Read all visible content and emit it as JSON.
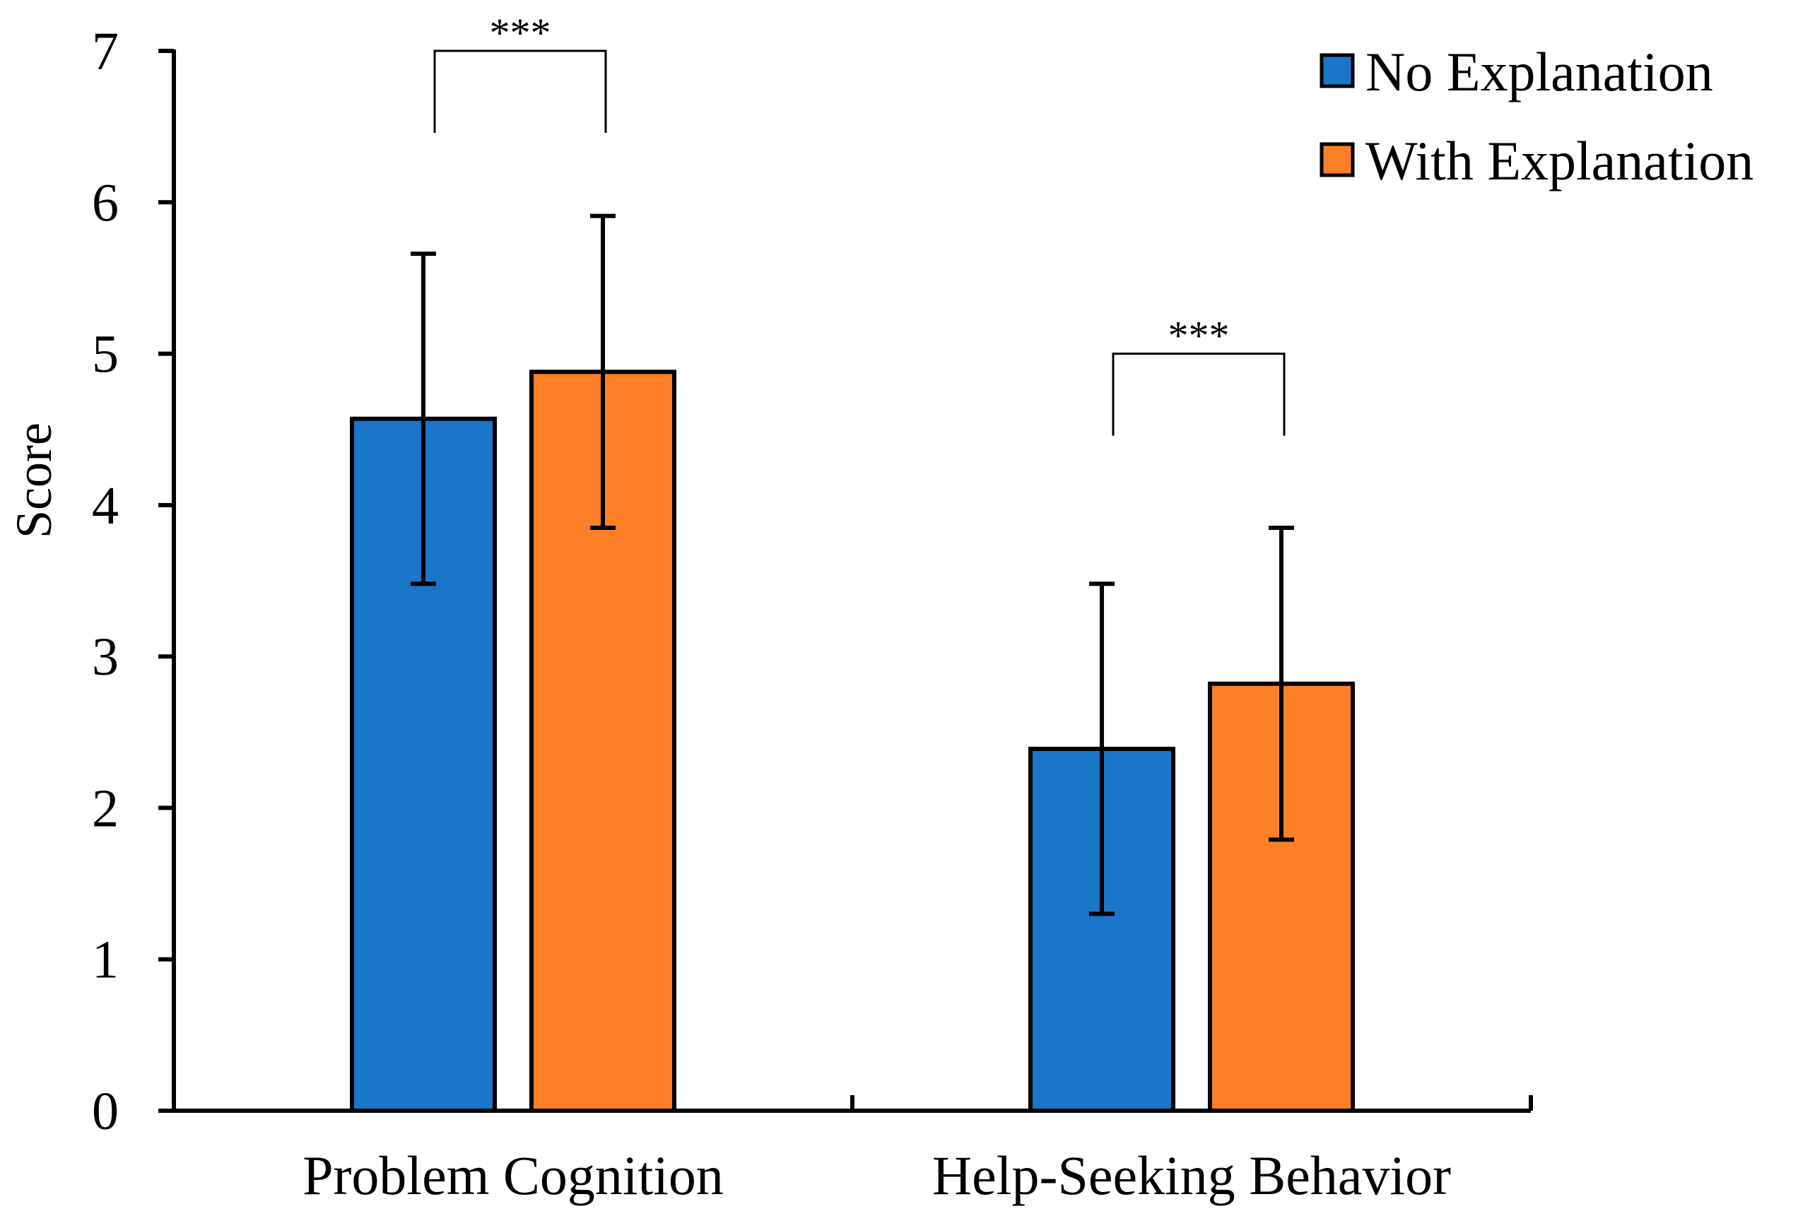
{
  "chart_data": {
    "type": "bar",
    "title": "",
    "xlabel": "",
    "ylabel": "Score",
    "ylim": [
      0,
      7
    ],
    "yticks": [
      "0",
      "1",
      "2",
      "3",
      "4",
      "5",
      "6",
      "7"
    ],
    "categories": [
      "Problem Cognition",
      "Help-Seeking Behavior"
    ],
    "series": [
      {
        "name": "No Explanation",
        "color": "#1b75c9",
        "values": [
          4.57,
          2.39
        ],
        "error": [
          1.09,
          1.09
        ]
      },
      {
        "name": "With Explanation",
        "color": "#fd8028",
        "values": [
          4.88,
          2.82
        ],
        "error": [
          1.03,
          1.03
        ]
      }
    ],
    "significance": [
      {
        "category": "Problem Cognition",
        "label": "***"
      },
      {
        "category": "Help-Seeking Behavior",
        "label": "***"
      }
    ],
    "legend": {
      "position": "top-right",
      "entries": [
        "No Explanation",
        "With Explanation"
      ]
    },
    "grid": false
  }
}
